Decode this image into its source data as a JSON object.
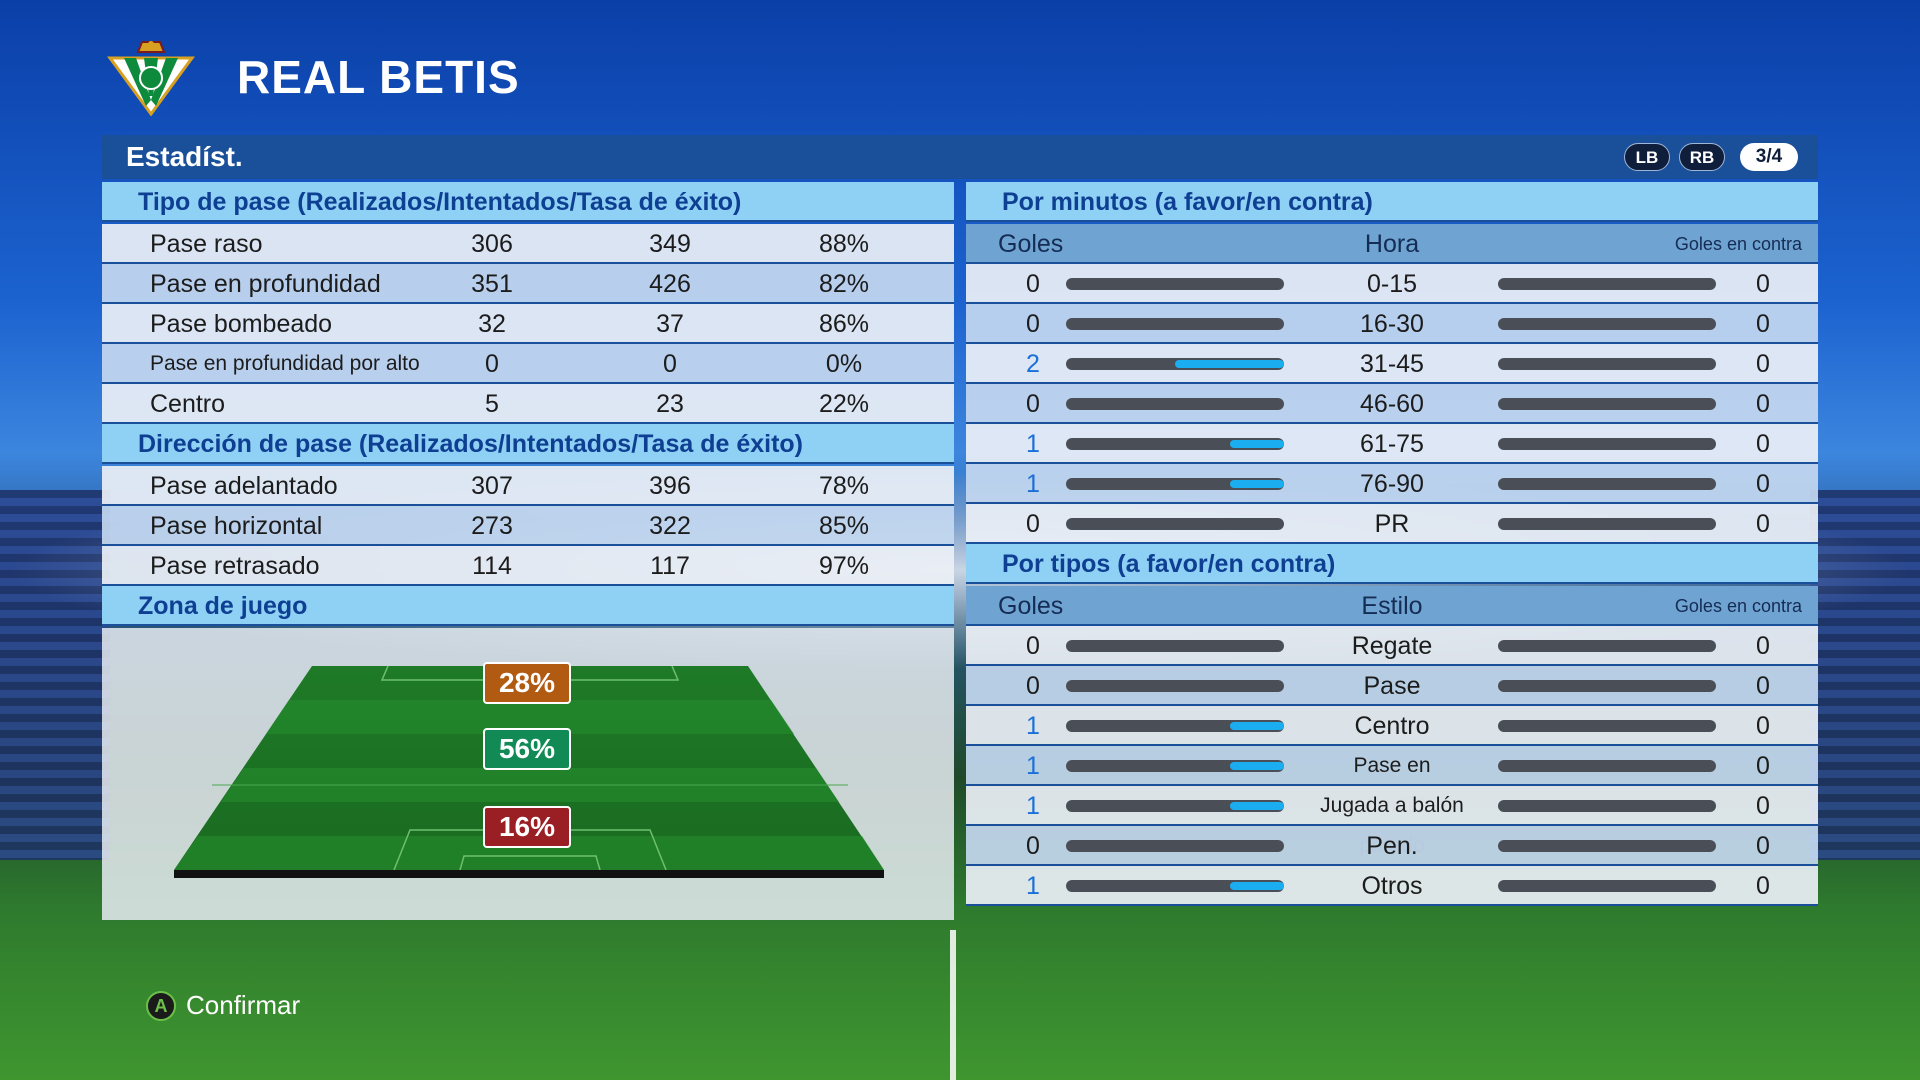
{
  "club": {
    "name": "REAL BETIS",
    "crest_icon": "real-betis-crest"
  },
  "header": {
    "title": "Estadíst.",
    "lb": "LB",
    "rb": "RB",
    "page": "3/4"
  },
  "colors": {
    "section_title_bg": "#8fd0f5",
    "accent_blue": "#1a6fd8",
    "bar_fill": "#1aaef0",
    "zone_top": "#b15a12",
    "zone_mid": "#128a55",
    "zone_bottom": "#9a1f24"
  },
  "pass_type": {
    "title": "Tipo de pase (Realizados/Intentados/Tasa de éxito)",
    "rows": [
      {
        "label": "Pase raso",
        "made": "306",
        "attempted": "349",
        "rate": "88%"
      },
      {
        "label": "Pase en profundidad",
        "made": "351",
        "attempted": "426",
        "rate": "82%"
      },
      {
        "label": "Pase bombeado",
        "made": "32",
        "attempted": "37",
        "rate": "86%"
      },
      {
        "label": "Pase en profundidad por alto",
        "made": "0",
        "attempted": "0",
        "rate": "0%"
      },
      {
        "label": "Centro",
        "made": "5",
        "attempted": "23",
        "rate": "22%"
      }
    ]
  },
  "pass_direction": {
    "title": "Dirección de pase (Realizados/Intentados/Tasa de éxito)",
    "rows": [
      {
        "label": "Pase adelantado",
        "made": "307",
        "attempted": "396",
        "rate": "78%"
      },
      {
        "label": "Pase horizontal",
        "made": "273",
        "attempted": "322",
        "rate": "85%"
      },
      {
        "label": "Pase retrasado",
        "made": "114",
        "attempted": "117",
        "rate": "97%"
      }
    ]
  },
  "play_zone": {
    "title": "Zona de juego",
    "attack": "28%",
    "middle": "56%",
    "defense": "16%"
  },
  "by_minute": {
    "title": "Por minutos (a favor/en contra)",
    "col_for": "Goles",
    "col_mid": "Hora",
    "col_against": "Goles en contra",
    "rows": [
      {
        "label": "0-15",
        "for": "0",
        "against": "0",
        "for_fraction": 0
      },
      {
        "label": "16-30",
        "for": "0",
        "against": "0",
        "for_fraction": 0
      },
      {
        "label": "31-45",
        "for": "2",
        "against": "0",
        "for_fraction": 0.5
      },
      {
        "label": "46-60",
        "for": "0",
        "against": "0",
        "for_fraction": 0
      },
      {
        "label": "61-75",
        "for": "1",
        "against": "0",
        "for_fraction": 0.25
      },
      {
        "label": "76-90",
        "for": "1",
        "against": "0",
        "for_fraction": 0.25
      },
      {
        "label": "PR",
        "for": "0",
        "against": "0",
        "for_fraction": 0
      }
    ]
  },
  "by_type": {
    "title": "Por tipos (a favor/en contra)",
    "col_for": "Goles",
    "col_mid": "Estilo",
    "col_against": "Goles en contra",
    "rows": [
      {
        "label": "Regate",
        "for": "0",
        "against": "0",
        "for_fraction": 0
      },
      {
        "label": "Pase",
        "for": "0",
        "against": "0",
        "for_fraction": 0
      },
      {
        "label": "Centro",
        "for": "1",
        "against": "0",
        "for_fraction": 0.25
      },
      {
        "label": "Pase en profundidad",
        "for": "1",
        "against": "0",
        "for_fraction": 0.25
      },
      {
        "label": "Jugada a balón parado",
        "for": "1",
        "against": "0",
        "for_fraction": 0.25
      },
      {
        "label": "Pen.",
        "for": "0",
        "against": "0",
        "for_fraction": 0
      },
      {
        "label": "Otros",
        "for": "1",
        "against": "0",
        "for_fraction": 0.25
      }
    ]
  },
  "footer": {
    "confirm_button": "A",
    "confirm_label": "Confirmar"
  }
}
